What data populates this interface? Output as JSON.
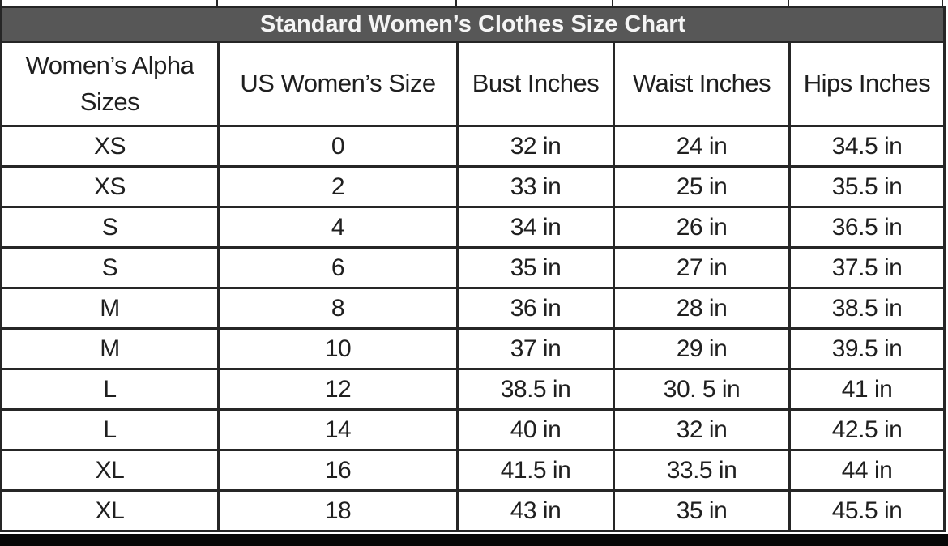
{
  "table": {
    "title": "Standard Women’s Clothes Size Chart",
    "headers": [
      "Women’s Alpha Sizes",
      "US Women’s Size",
      "Bust Inches",
      "Waist Inches",
      "Hips Inches"
    ],
    "rows": [
      [
        "XS",
        "0",
        "32 in",
        "24 in",
        "34.5 in"
      ],
      [
        "XS",
        "2",
        "33 in",
        "25 in",
        "35.5 in"
      ],
      [
        "S",
        "4",
        "34 in",
        "26 in",
        "36.5 in"
      ],
      [
        "S",
        "6",
        "35 in",
        "27 in",
        "37.5 in"
      ],
      [
        "M",
        "8",
        "36 in",
        "28 in",
        "38.5 in"
      ],
      [
        "M",
        "10",
        "37 in",
        "29 in",
        "39.5 in"
      ],
      [
        "L",
        "12",
        "38.5 in",
        "30. 5 in",
        "41 in"
      ],
      [
        "L",
        "14",
        "40 in",
        "32 in",
        "42.5 in"
      ],
      [
        "XL",
        "16",
        "41.5 in",
        "33.5 in",
        "44 in"
      ],
      [
        "XL",
        "18",
        "43 in",
        "35 in",
        "45.5 in"
      ]
    ]
  },
  "colors": {
    "title_bar_background": "#575757",
    "title_text": "#f5f5f5",
    "cell_text": "#1f1f1f",
    "border": "#262626",
    "bottom_bar": "#060606"
  }
}
